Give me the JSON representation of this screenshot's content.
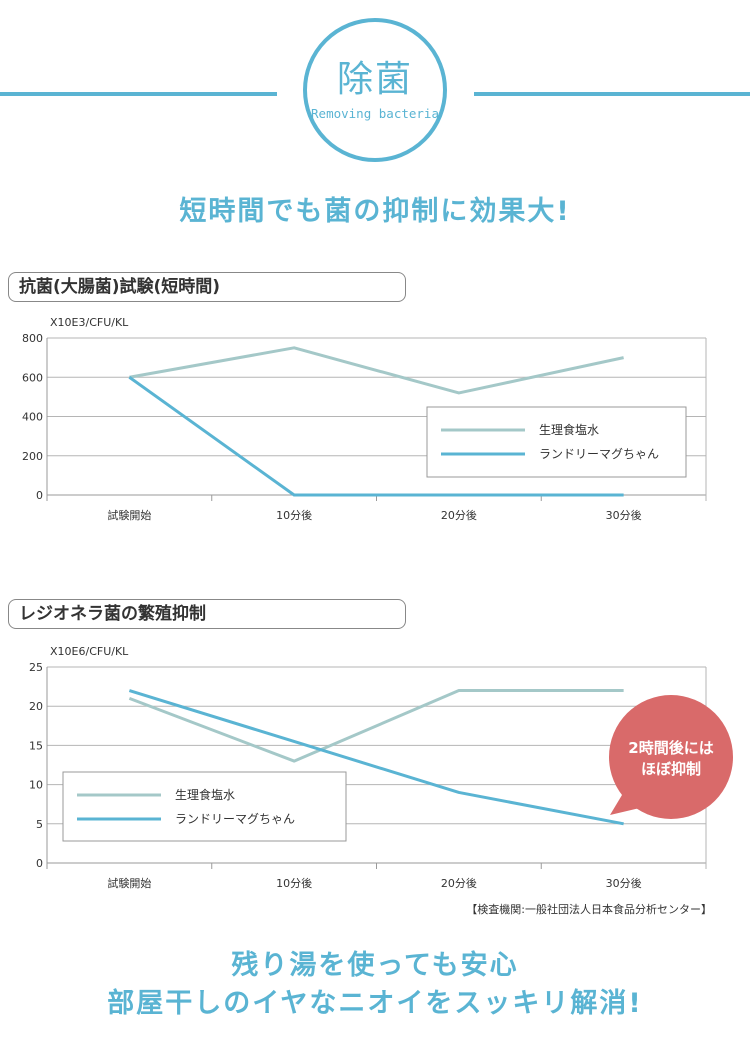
{
  "header": {
    "title": "除菌",
    "subtitle": "Removing bacteria",
    "headline": "短時間でも菌の抑制に効果大!"
  },
  "colors": {
    "accent": "#5ab4d3",
    "saline": "#a4c8c8",
    "product": "#5ab4d3",
    "bubble": "#d96a6a"
  },
  "charts": [
    {
      "section_label": "抗菌(大腸菌)試験(短時間)"
    },
    {
      "section_label": "レジオネラ菌の繁殖抑制",
      "callout": [
        "2時間後には",
        "ほぼ抑制"
      ]
    }
  ],
  "chart_data": [
    {
      "type": "line",
      "ylabel": "X10E3/CFU/KL",
      "categories": [
        "試験開始",
        "10分後",
        "20分後",
        "30分後"
      ],
      "ylim": [
        0,
        800
      ],
      "yticks": [
        0,
        200,
        400,
        600,
        800
      ],
      "grid": true,
      "legend_position": "center-right",
      "series": [
        {
          "name": "生理食塩水",
          "values": [
            600,
            750,
            520,
            700
          ]
        },
        {
          "name": "ランドリーマグちゃん",
          "values": [
            600,
            0,
            0,
            0
          ]
        }
      ]
    },
    {
      "type": "line",
      "ylabel": "X10E6/CFU/KL",
      "categories": [
        "試験開始",
        "10分後",
        "20分後",
        "30分後"
      ],
      "ylim": [
        0,
        25
      ],
      "yticks": [
        0,
        5,
        10,
        15,
        20,
        25
      ],
      "grid": true,
      "legend_position": "bottom-left",
      "series": [
        {
          "name": "生理食塩水",
          "values": [
            21,
            13,
            22,
            22
          ]
        },
        {
          "name": "ランドリーマグちゃん",
          "values": [
            22,
            15.5,
            9,
            5
          ]
        }
      ]
    }
  ],
  "footer": {
    "note": "【検査機関:一般社団法人日本食品分析センター】",
    "line1": "残り湯を使っても安心",
    "line2": "部屋干しのイヤなニオイをスッキリ解消!"
  }
}
